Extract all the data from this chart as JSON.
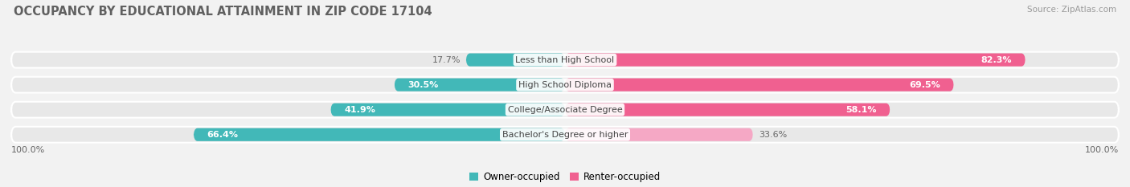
{
  "title": "OCCUPANCY BY EDUCATIONAL ATTAINMENT IN ZIP CODE 17104",
  "source": "Source: ZipAtlas.com",
  "categories": [
    "Less than High School",
    "High School Diploma",
    "College/Associate Degree",
    "Bachelor's Degree or higher"
  ],
  "owner_pct": [
    17.7,
    30.5,
    41.9,
    66.4
  ],
  "renter_pct": [
    82.3,
    69.5,
    58.1,
    33.6
  ],
  "owner_color": "#42b8b8",
  "renter_colors": [
    "#f06090",
    "#f06090",
    "#f06090",
    "#f5a8c5"
  ],
  "row_bg_color": "#e8e8e8",
  "fig_bg_color": "#f2f2f2",
  "title_color": "#606060",
  "source_color": "#999999",
  "label_color": "#444444",
  "pct_color_inside": "#ffffff",
  "pct_color_outside": "#666666",
  "title_fontsize": 10.5,
  "label_fontsize": 8.0,
  "pct_fontsize": 8.0,
  "legend_fontsize": 8.5,
  "source_fontsize": 7.5
}
